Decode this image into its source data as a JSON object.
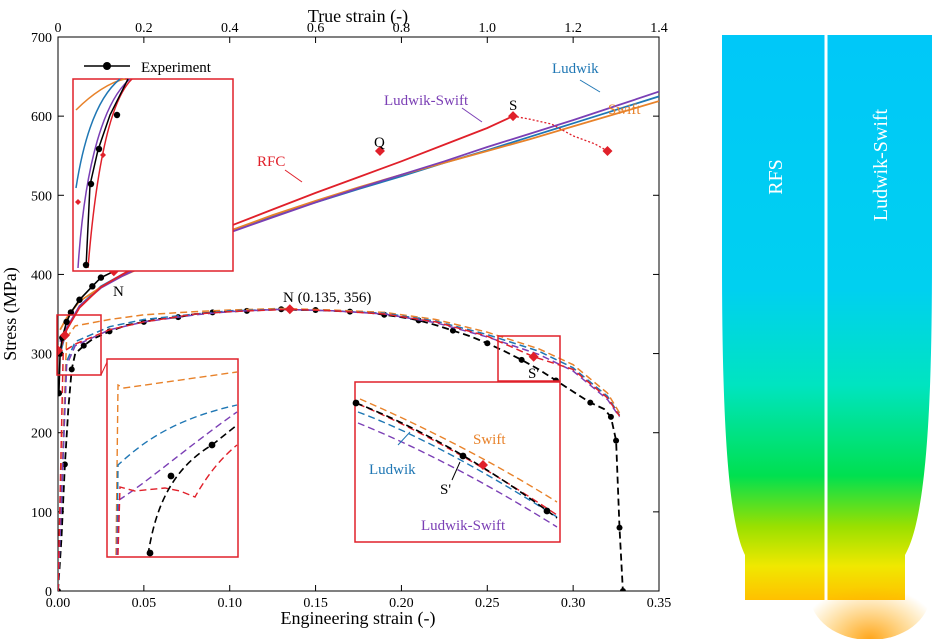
{
  "chart_data": [
    {
      "type": "line",
      "title": "",
      "xlabel": "Engineering strain (-)",
      "ylabel": "Stress (MPa)",
      "x2label": "True strain (-)",
      "xlim": [
        0,
        0.35
      ],
      "x2lim": [
        0,
        1.4
      ],
      "ylim": [
        0,
        700
      ],
      "xticks": [
        "0.00",
        "0.05",
        "0.10",
        "0.15",
        "0.20",
        "0.25",
        "0.30",
        "0.35"
      ],
      "x2ticks": [
        "0",
        "0.2",
        "0.4",
        "0.6",
        "0.8",
        "1.0",
        "1.2",
        "1.4"
      ],
      "yticks": [
        "0",
        "100",
        "200",
        "300",
        "400",
        "500",
        "600",
        "700"
      ],
      "grid": false,
      "legend": "top-left",
      "legend_entries": [
        "Experiment"
      ],
      "true_curves": [
        {
          "name": "Ludwik",
          "color": "#1f77b4",
          "x": [
            0.005,
            0.02,
            0.05,
            0.1,
            0.15,
            0.2,
            0.3,
            0.4,
            0.5,
            0.6,
            0.7,
            0.8,
            0.9,
            1.0,
            1.1,
            1.2,
            1.3,
            1.4
          ],
          "y": [
            300,
            330,
            360,
            385,
            400,
            414,
            436,
            455,
            474,
            491,
            508,
            524,
            541,
            557,
            574,
            591,
            608,
            625
          ]
        },
        {
          "name": "Swift",
          "color": "#e8822a",
          "x": [
            0.005,
            0.02,
            0.05,
            0.1,
            0.15,
            0.2,
            0.3,
            0.4,
            0.5,
            0.6,
            0.7,
            0.8,
            0.9,
            1.0,
            1.1,
            1.2,
            1.3,
            1.4
          ],
          "y": [
            330,
            345,
            366,
            384,
            398,
            410,
            433,
            455,
            475,
            493,
            510,
            526,
            541,
            556,
            571,
            587,
            603,
            619
          ]
        },
        {
          "name": "Ludwik-Swift",
          "color": "#7b3fb5",
          "x": [
            0.005,
            0.02,
            0.05,
            0.1,
            0.15,
            0.2,
            0.3,
            0.4,
            0.5,
            0.6,
            0.7,
            0.8,
            0.9,
            1.0,
            1.1,
            1.2,
            1.3,
            1.4
          ],
          "y": [
            315,
            332,
            360,
            383,
            398,
            411,
            433,
            453,
            472,
            491,
            509,
            526,
            543,
            561,
            578,
            595,
            613,
            631
          ]
        },
        {
          "name": "RFC",
          "color": "#e0202a",
          "x": [
            0.005,
            0.02,
            0.05,
            0.1,
            0.15,
            0.2,
            0.3,
            0.4,
            0.5,
            0.6,
            0.7,
            0.8,
            0.9,
            1.0,
            1.06
          ],
          "y": [
            305,
            330,
            358,
            384,
            400,
            415,
            440,
            461,
            482,
            503,
            523,
            543,
            564,
            585,
            600
          ]
        },
        {
          "name": "Experiment",
          "color": "#000000",
          "x": [
            0.002,
            0.005,
            0.01,
            0.02,
            0.03,
            0.05,
            0.08,
            0.1,
            0.13
          ],
          "y": [
            250,
            300,
            320,
            340,
            352,
            368,
            385,
            396,
            404
          ]
        }
      ],
      "post_necking": {
        "x": [
          1.06,
          1.1,
          1.15,
          1.2,
          1.25,
          1.28
        ],
        "y": [
          600,
          596,
          590,
          575,
          565,
          556
        ]
      },
      "engineering_curves": [
        {
          "name": "Experiment",
          "color": "#000000",
          "x": [
            0,
            0.002,
            0.004,
            0.006,
            0.008,
            0.01,
            0.015,
            0.02,
            0.03,
            0.04,
            0.05,
            0.06,
            0.07,
            0.08,
            0.09,
            0.1,
            0.11,
            0.12,
            0.13,
            0.14,
            0.15,
            0.16,
            0.17,
            0.18,
            0.19,
            0.2,
            0.21,
            0.22,
            0.23,
            0.24,
            0.25,
            0.26,
            0.27,
            0.28,
            0.29,
            0.3,
            0.31,
            0.318,
            0.322,
            0.325,
            0.327,
            0.329
          ],
          "y": [
            0,
            65,
            160,
            230,
            280,
            300,
            310,
            318,
            328,
            336,
            340,
            344,
            346,
            350,
            352,
            353,
            354,
            355,
            356,
            355,
            355,
            354,
            353,
            352,
            349,
            346,
            342,
            336,
            329,
            322,
            313,
            303,
            292,
            280,
            266,
            252,
            238,
            230,
            220,
            190,
            80,
            0
          ]
        },
        {
          "name": "Swift",
          "color": "#e8822a",
          "x": [
            0.0,
            0.005,
            0.01,
            0.03,
            0.05,
            0.08,
            0.1,
            0.13,
            0.16,
            0.19,
            0.22,
            0.25,
            0.28,
            0.3,
            0.32,
            0.327
          ],
          "y": [
            0,
            320,
            335,
            343,
            349,
            353,
            355,
            357,
            355,
            352,
            343,
            327,
            306,
            286,
            250,
            225
          ]
        },
        {
          "name": "Ludwik",
          "color": "#1f77b4",
          "x": [
            0.0,
            0.005,
            0.01,
            0.03,
            0.05,
            0.08,
            0.1,
            0.13,
            0.16,
            0.19,
            0.22,
            0.25,
            0.28,
            0.3,
            0.32,
            0.327
          ],
          "y": [
            0,
            290,
            315,
            334,
            343,
            350,
            354,
            356,
            354,
            351,
            341,
            324,
            303,
            282,
            246,
            222
          ]
        },
        {
          "name": "Ludwik-Swift",
          "color": "#7b3fb5",
          "x": [
            0.0,
            0.005,
            0.01,
            0.03,
            0.05,
            0.08,
            0.1,
            0.13,
            0.16,
            0.19,
            0.22,
            0.25,
            0.28,
            0.3,
            0.32,
            0.327
          ],
          "y": [
            0,
            285,
            310,
            330,
            340,
            349,
            353,
            356,
            354,
            350,
            339,
            321,
            299,
            278,
            242,
            220
          ]
        },
        {
          "name": "RFC",
          "color": "#e0202a",
          "x": [
            0.0,
            0.003,
            0.005,
            0.01,
            0.03,
            0.05,
            0.08,
            0.1,
            0.135,
            0.16,
            0.19,
            0.22,
            0.25,
            0.277,
            0.3,
            0.32,
            0.327
          ],
          "y": [
            0,
            300,
            305,
            312,
            330,
            340,
            350,
            353,
            356,
            354,
            350,
            340,
            322,
            296,
            280,
            244,
            221
          ]
        }
      ],
      "red_markers": [
        {
          "axis": "true",
          "x": 0.13,
          "y": 404
        },
        {
          "axis": "true",
          "x": 0.75,
          "y": 556
        },
        {
          "axis": "true",
          "x": 1.06,
          "y": 600
        },
        {
          "axis": "true",
          "x": 1.28,
          "y": 556
        },
        {
          "axis": "eng",
          "x": 0.135,
          "y": 356
        },
        {
          "axis": "eng",
          "x": 0.277,
          "y": 296
        },
        {
          "axis": "eng",
          "x": 0.0,
          "y": 304
        },
        {
          "axis": "eng",
          "x": 0.004,
          "y": 323
        }
      ],
      "annotations": {
        "n": "N",
        "n_coord": "N (0.135, 356)",
        "q": "Q",
        "s": "S",
        "s_prime": "S'",
        "s_prime_inset": "S'",
        "rfc": "RFC",
        "ludwik": "Ludwik",
        "swift": "Swift",
        "ludwik_swift": "Ludwik-Swift",
        "inset_ludwik": "Ludwik",
        "inset_swift": "Swift",
        "inset_ludwik_swift": "Ludwik-Swift",
        "legend_experiment": "Experiment"
      }
    }
  ],
  "contour_panel": {
    "left_label": "RFS",
    "right_label": "Ludwik-Swift",
    "colors": [
      "#00c8f8",
      "#00d0f0",
      "#00e4c0",
      "#00e050",
      "#9ae000",
      "#f0e800",
      "#ffb000"
    ]
  }
}
